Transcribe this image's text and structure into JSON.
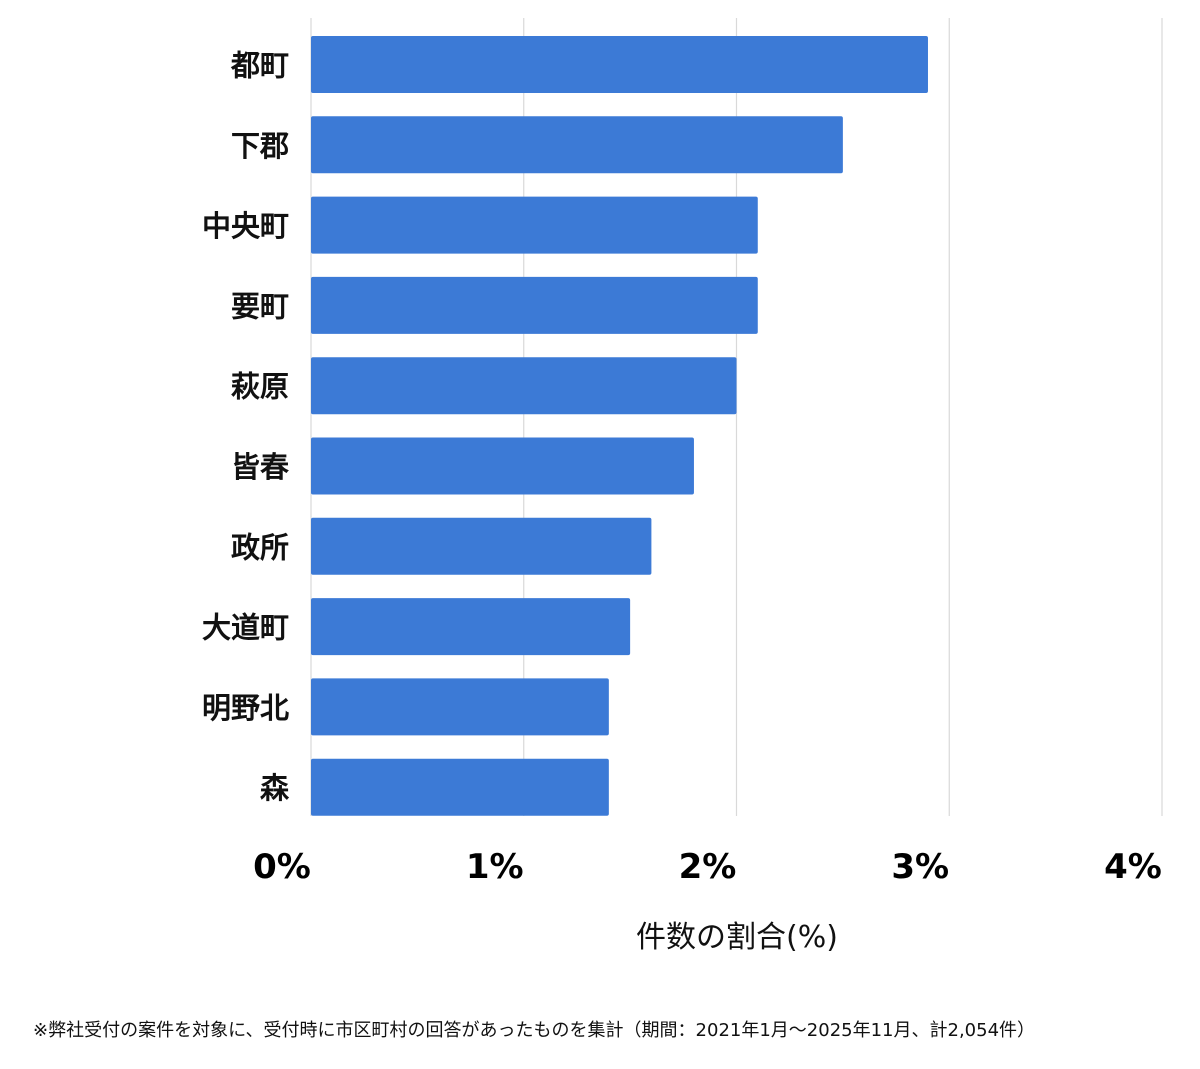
{
  "chart_data": {
    "type": "bar",
    "orientation": "horizontal",
    "categories": [
      "都町",
      "下郡",
      "中央町",
      "要町",
      "萩原",
      "皆春",
      "政所",
      "大道町",
      "明野北",
      "森"
    ],
    "values": [
      2.9,
      2.5,
      2.1,
      2.1,
      2.0,
      1.8,
      1.6,
      1.5,
      1.4,
      1.4
    ],
    "xlim": [
      0,
      4
    ],
    "x_ticks": [
      0,
      1,
      2,
      3,
      4
    ],
    "x_tick_labels": [
      "0%",
      "1%",
      "2%",
      "3%",
      "4%"
    ],
    "xlabel": "件数の割合(%)",
    "ylabel": "",
    "title": "",
    "grid": "vertical",
    "legend": "none",
    "bar_color": "#3c7ad6",
    "grid_color": "#d9d9d9"
  },
  "footnote": "※弊社受付の案件を対象に、受付時に市区町村の回答があったものを集計（期間：2021年1月～2025年11月、計2,054件）"
}
